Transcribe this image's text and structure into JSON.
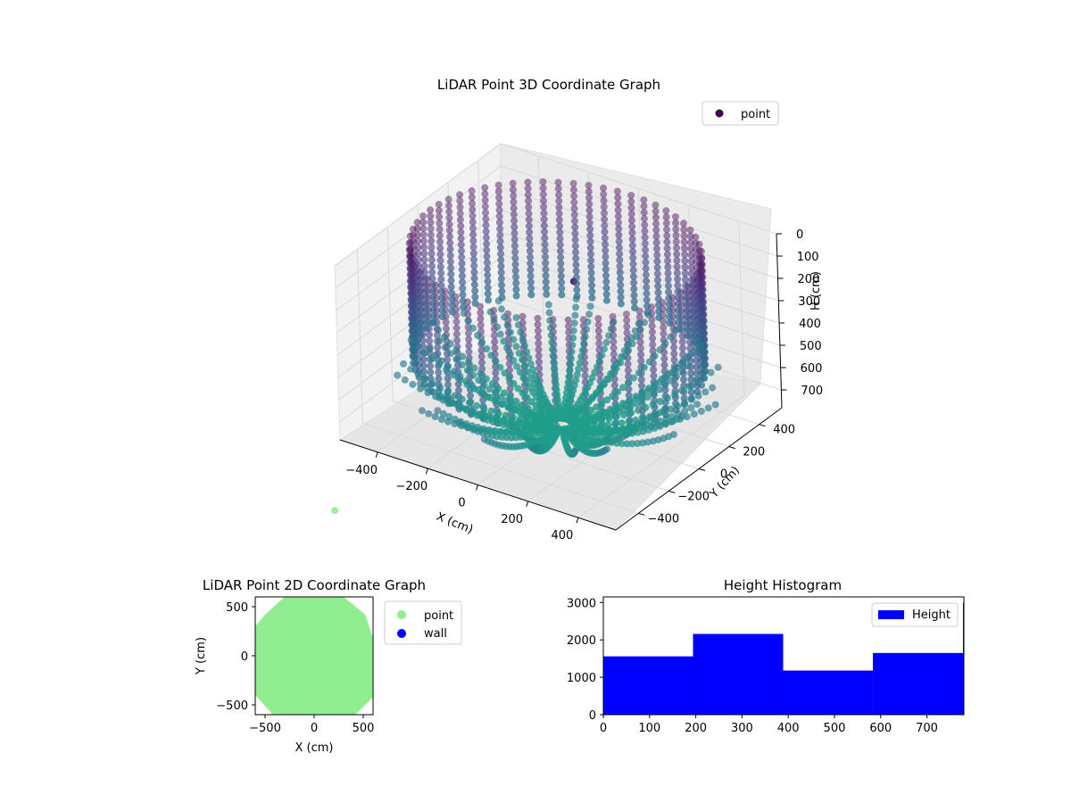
{
  "chart_data": [
    {
      "type": "scatter",
      "projection": "3d",
      "title": "LiDAR Point 3D Coordinate Graph",
      "xlabel": "X (cm)",
      "ylabel": "Y (cm)",
      "zlabel": "H (cm)",
      "xticks": [
        "−400",
        "−200",
        "0",
        "200",
        "400"
      ],
      "yticks": [
        "−400",
        "−200",
        "0",
        "200",
        "400"
      ],
      "zticks": [
        "0",
        "100",
        "200",
        "300",
        "400",
        "500",
        "600",
        "700"
      ],
      "xlim": [
        -550,
        550
      ],
      "ylim": [
        -550,
        550
      ],
      "zlim": [
        0,
        780
      ],
      "z_inverted": true,
      "colormap": "viridis",
      "legend": {
        "position": "top-right",
        "entries": [
          {
            "label": "point",
            "color": "#440154"
          }
        ]
      },
      "structure": {
        "ring_radius": 500,
        "ring_height_range": [
          0,
          520
        ],
        "floor_spokes": 40,
        "floor_height_range": [
          560,
          780
        ],
        "stray_point": {
          "x": 100,
          "y": -50,
          "h": 80
        }
      }
    },
    {
      "type": "scatter",
      "title": "LiDAR Point 2D Coordinate Graph",
      "xlabel": "X (cm)",
      "ylabel": "Y (cm)",
      "xticks": [
        "−500",
        "0",
        "500"
      ],
      "yticks": [
        "−500",
        "0",
        "500"
      ],
      "xlim": [
        -600,
        600
      ],
      "ylim": [
        -600,
        600
      ],
      "legend": {
        "position": "right-outside",
        "entries": [
          {
            "label": "point",
            "color": "#90ee90"
          },
          {
            "label": "wall",
            "color": "#0000ff"
          }
        ]
      },
      "outlier": {
        "x": 210,
        "y": 1480
      }
    },
    {
      "type": "bar",
      "title": "Height Histogram",
      "xticks": [
        "0",
        "100",
        "200",
        "300",
        "400",
        "500",
        "600",
        "700"
      ],
      "yticks": [
        "0",
        "1000",
        "2000",
        "3000"
      ],
      "xlim": [
        0,
        780
      ],
      "ylim": [
        0,
        3150
      ],
      "bins": [
        {
          "start": 0,
          "end": 194,
          "count": 1560
        },
        {
          "start": 194,
          "end": 389,
          "count": 2160
        },
        {
          "start": 389,
          "end": 583,
          "count": 1180
        },
        {
          "start": 583,
          "end": 778,
          "count": 1650
        },
        {
          "start": 778,
          "end": 782,
          "count": 3000
        }
      ],
      "color": "#0000ff",
      "legend": {
        "position": "top-right",
        "entries": [
          {
            "label": "Height",
            "color": "#0000ff"
          }
        ]
      }
    }
  ]
}
